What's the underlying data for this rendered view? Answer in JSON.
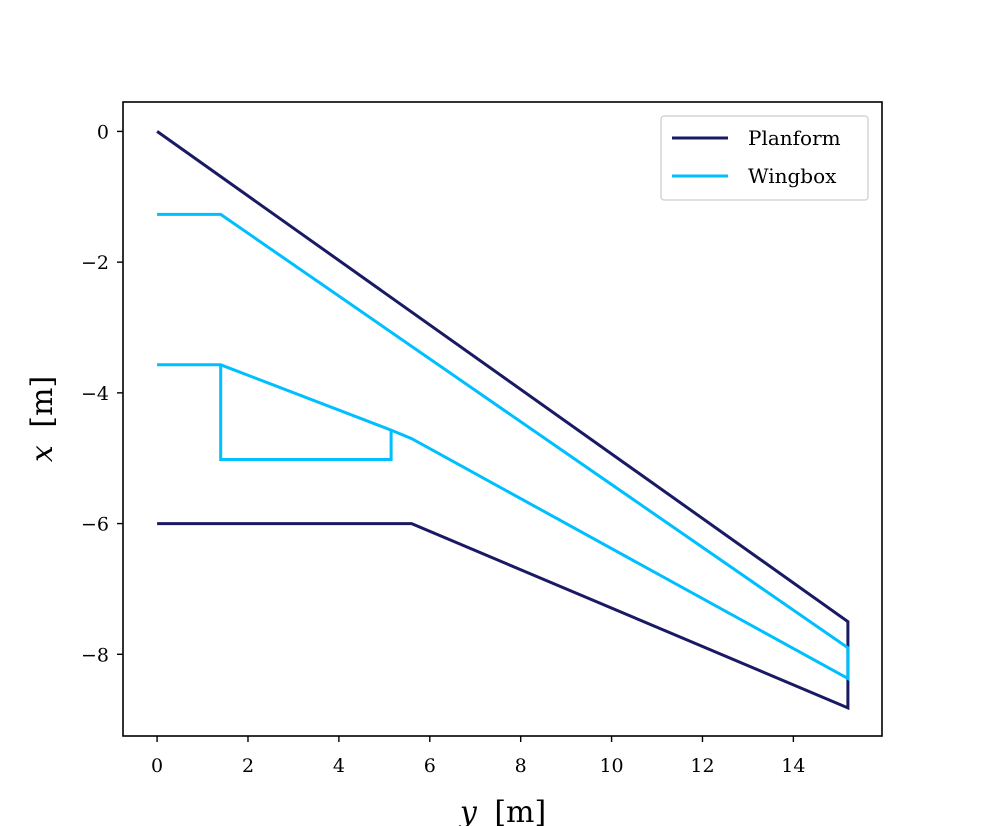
{
  "chart_data": {
    "type": "line",
    "title": "",
    "xlabel_var": "y",
    "xlabel_unit": "[m]",
    "ylabel_var": "x",
    "ylabel_unit": "[m]",
    "xlim": [
      -0.75,
      15.95
    ],
    "ylim": [
      -9.25,
      0.45
    ],
    "xticks": [
      0,
      2,
      4,
      6,
      8,
      10,
      12,
      14
    ],
    "yticks": [
      0,
      -2,
      -4,
      -6,
      -8
    ],
    "xtick_labels": [
      "0",
      "2",
      "4",
      "6",
      "8",
      "10",
      "12",
      "14"
    ],
    "ytick_labels": [
      "0",
      "−2",
      "−4",
      "−6",
      "−8"
    ],
    "grid": false,
    "legend_position": "top-right",
    "series": [
      {
        "name": "Planform",
        "color": "#1a1a64",
        "paths": [
          [
            [
              0,
              0
            ],
            [
              15.2,
              -7.5
            ],
            [
              15.2,
              -8.82
            ],
            [
              5.6,
              -6.0
            ],
            [
              0,
              -6.0
            ]
          ]
        ]
      },
      {
        "name": "Wingbox",
        "color": "#00bfff",
        "paths": [
          [
            [
              0,
              -1.27
            ],
            [
              1.4,
              -1.27
            ],
            [
              15.2,
              -7.9
            ],
            [
              15.2,
              -8.37
            ],
            [
              5.6,
              -4.7
            ],
            [
              5.15,
              -4.57
            ],
            [
              1.4,
              -3.57
            ],
            [
              0,
              -3.57
            ]
          ],
          [
            [
              1.4,
              -3.57
            ],
            [
              1.4,
              -5.02
            ],
            [
              5.15,
              -5.02
            ],
            [
              5.15,
              -4.57
            ]
          ]
        ]
      }
    ]
  }
}
